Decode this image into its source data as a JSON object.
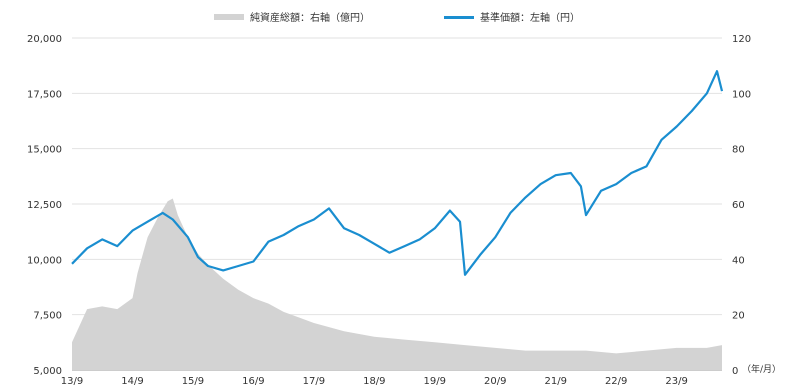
{
  "chart_data": {
    "type": "line",
    "title": "",
    "x_unit_label": "（年/月）",
    "x_tick_labels": [
      "13/9",
      "14/9",
      "15/9",
      "16/9",
      "17/9",
      "18/9",
      "19/9",
      "20/9",
      "21/9",
      "22/9",
      "23/9"
    ],
    "x_range": [
      "2013-09",
      "2024-06"
    ],
    "left_axis": {
      "ticks": [
        "5,000",
        "7,500",
        "10,000",
        "12,500",
        "15,000",
        "17,500",
        "20,000"
      ],
      "tick_values": [
        5000,
        7500,
        10000,
        12500,
        15000,
        17500,
        20000
      ],
      "range": [
        5000,
        20000
      ]
    },
    "right_axis": {
      "ticks": [
        "0",
        "20",
        "40",
        "60",
        "80",
        "100",
        "120"
      ],
      "tick_values": [
        0,
        20,
        40,
        60,
        80,
        100,
        120
      ],
      "range": [
        0,
        120
      ]
    },
    "legend": [
      {
        "label": "純資産総額：右軸（億円）",
        "color": "#d3d3d3",
        "type": "area"
      },
      {
        "label": "基準価額：左軸（円）",
        "color": "#1a8ed0",
        "type": "line"
      }
    ],
    "series": [
      {
        "name": "純資産総額：右軸（億円）",
        "axis": "right",
        "type": "area",
        "color": "#d3d3d3",
        "x": [
          "2013-09",
          "2013-12",
          "2014-03",
          "2014-06",
          "2014-09",
          "2014-10",
          "2014-12",
          "2015-02",
          "2015-04",
          "2015-05",
          "2015-06",
          "2015-08",
          "2015-10",
          "2015-12",
          "2016-03",
          "2016-06",
          "2016-09",
          "2016-12",
          "2017-03",
          "2017-06",
          "2017-09",
          "2018-03",
          "2018-09",
          "2019-03",
          "2019-09",
          "2020-03",
          "2020-09",
          "2021-03",
          "2021-09",
          "2022-03",
          "2022-09",
          "2023-03",
          "2023-09",
          "2024-03",
          "2024-06"
        ],
        "values": [
          10,
          22,
          23,
          22,
          26,
          35,
          48,
          55,
          61,
          62,
          56,
          48,
          42,
          38,
          33,
          29,
          26,
          24,
          21,
          19,
          17,
          14,
          12,
          11,
          10,
          9,
          8,
          7,
          7,
          7,
          6,
          7,
          8,
          8,
          9
        ]
      },
      {
        "name": "基準価額：左軸（円）",
        "axis": "left",
        "type": "line",
        "color": "#1a8ed0",
        "x": [
          "2013-09",
          "2013-12",
          "2014-03",
          "2014-06",
          "2014-09",
          "2014-12",
          "2015-03",
          "2015-05",
          "2015-08",
          "2015-10",
          "2015-12",
          "2016-03",
          "2016-06",
          "2016-09",
          "2016-12",
          "2017-03",
          "2017-06",
          "2017-09",
          "2017-12",
          "2018-03",
          "2018-06",
          "2018-09",
          "2018-12",
          "2019-03",
          "2019-06",
          "2019-09",
          "2019-12",
          "2020-02",
          "2020-03",
          "2020-06",
          "2020-09",
          "2020-12",
          "2021-03",
          "2021-06",
          "2021-09",
          "2021-12",
          "2022-02",
          "2022-03",
          "2022-06",
          "2022-09",
          "2022-12",
          "2023-03",
          "2023-06",
          "2023-09",
          "2023-12",
          "2024-03",
          "2024-05",
          "2024-06"
        ],
        "values": [
          9800,
          10500,
          10900,
          10600,
          11300,
          11700,
          12100,
          11800,
          11000,
          10100,
          9700,
          9500,
          9700,
          9900,
          10800,
          11100,
          11500,
          11800,
          12300,
          11400,
          11100,
          10700,
          10300,
          10600,
          10900,
          11400,
          12200,
          11700,
          9300,
          10200,
          11000,
          12100,
          12800,
          13400,
          13800,
          13900,
          13300,
          12000,
          13100,
          13400,
          13900,
          14200,
          15400,
          16000,
          16700,
          17500,
          18500,
          17600
        ]
      }
    ]
  }
}
